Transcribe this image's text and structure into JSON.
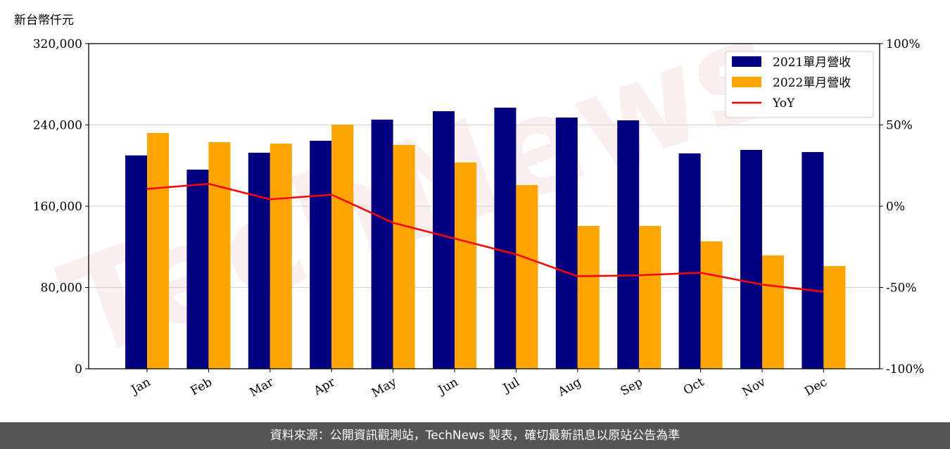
{
  "chart_data": {
    "type": "bar",
    "unit_label": "新台幣仟元",
    "categories": [
      "Jan",
      "Feb",
      "Mar",
      "Apr",
      "May",
      "Jun",
      "Jul",
      "Aug",
      "Sep",
      "Oct",
      "Nov",
      "Dec"
    ],
    "series": [
      {
        "name": "2021單月營收",
        "type": "bar",
        "axis": "left",
        "color": "#000080",
        "values": [
          210000,
          196000,
          212600,
          224400,
          245200,
          253500,
          257000,
          247300,
          244500,
          212000,
          215400,
          213300
        ]
      },
      {
        "name": "2022單月營收",
        "type": "bar",
        "axis": "left",
        "color": "#FFA500",
        "values": [
          232000,
          223000,
          221600,
          240300,
          220300,
          203000,
          180800,
          140600,
          140600,
          125400,
          111500,
          101100
        ]
      },
      {
        "name": "YoY",
        "type": "line",
        "axis": "right",
        "color": "#FF0000",
        "values": [
          10.6,
          13.8,
          4.2,
          7.1,
          -10.2,
          -19.9,
          -29.6,
          -43.1,
          -42.5,
          -40.9,
          -48.2,
          -52.6
        ]
      }
    ],
    "ylim": [
      0,
      320000
    ],
    "yticks": [
      "0",
      "80,000",
      "160,000",
      "240,000",
      "320,000"
    ],
    "y2lim": [
      -100,
      100
    ],
    "y2ticks": [
      "-100%",
      "-50%",
      "0%",
      "50%",
      "100%"
    ],
    "grid": true,
    "legend_position": "top-right"
  },
  "watermark": "TechNews",
  "footer": "資料來源：公開資訊觀測站，TechNews 製表，確切最新訊息以原站公告為準"
}
